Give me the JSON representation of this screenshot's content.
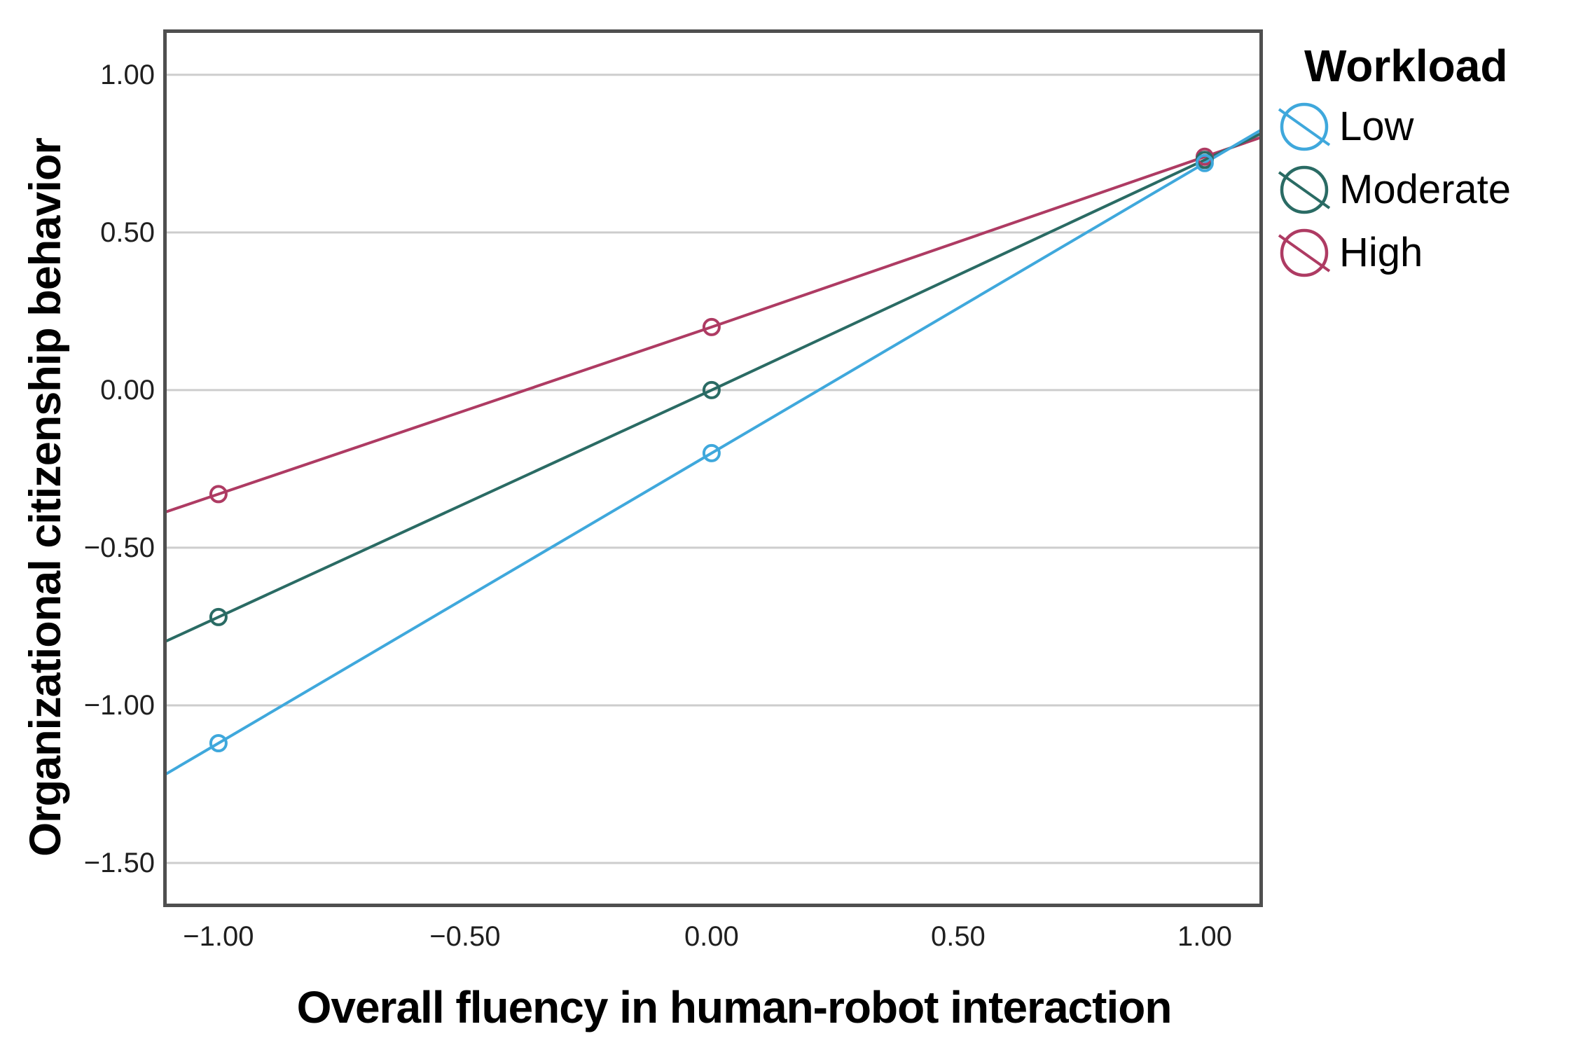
{
  "page": {
    "background": "#ffffff"
  },
  "chart_data": {
    "type": "line",
    "title": "",
    "xlabel": "Overall fluency in human-robot interaction",
    "ylabel": "Organizational citizenship behavior",
    "legend_title": "Workload",
    "legend_position": "outside-top-right",
    "grid": "horizontal-only",
    "x_tick_labels": [
      "−1.00",
      "−0.50",
      "0.00",
      "0.50",
      "1.00"
    ],
    "y_tick_labels": [
      "1.00",
      "0.50",
      "0.00",
      "−0.50",
      "−1.00",
      "−1.50"
    ],
    "xlim": [
      -1.112,
      1.118
    ],
    "ylim": [
      -1.64,
      1.144
    ],
    "x": [
      -1.0,
      0.0,
      1.0
    ],
    "series": [
      {
        "name": "High",
        "color": "#AE3B63",
        "values": [
          -0.33,
          0.2,
          0.74
        ]
      },
      {
        "name": "Moderate",
        "color": "#2A6B64",
        "values": [
          -0.72,
          0.0,
          0.73
        ]
      },
      {
        "name": "Low",
        "color": "#3FA8DC",
        "values": [
          -1.12,
          -0.2,
          0.72
        ]
      }
    ],
    "legend_order": [
      "Low",
      "Moderate",
      "High"
    ],
    "marker": "open-circle",
    "lines_extend_to_plot_edges": true
  },
  "colors": {
    "grid_line": "#cdcdcd",
    "plot_frame": "#4f4f4f",
    "tick_label": "#1f1f1f",
    "title_text": "#000000"
  }
}
